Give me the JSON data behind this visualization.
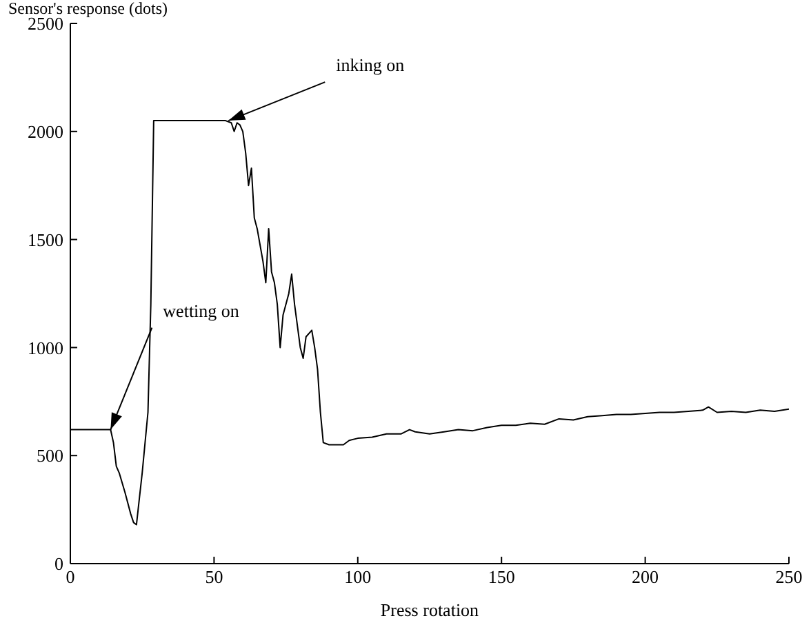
{
  "chart_data": {
    "type": "line",
    "ylabel": "Sensor's response (dots)",
    "xlabel": "Press rotation",
    "x": [
      0,
      14,
      15,
      16,
      17,
      19,
      21,
      22,
      23,
      24,
      25,
      26,
      27,
      28,
      29,
      54,
      56,
      57,
      58,
      59,
      60,
      61,
      62,
      63,
      64,
      65,
      67,
      68,
      69,
      70,
      71,
      72,
      73,
      74,
      76,
      77,
      78,
      80,
      81,
      82,
      84,
      85,
      86,
      87,
      88,
      90,
      95,
      97,
      100,
      105,
      110,
      115,
      118,
      120,
      125,
      130,
      135,
      140,
      145,
      150,
      155,
      160,
      165,
      170,
      175,
      180,
      185,
      190,
      195,
      200,
      205,
      210,
      215,
      220,
      222,
      225,
      230,
      235,
      240,
      245,
      250
    ],
    "series": [
      {
        "color": "#000000",
        "values": [
          620,
          620,
          560,
          450,
          420,
          330,
          230,
          190,
          180,
          300,
          420,
          560,
          700,
          1200,
          2050,
          2050,
          2040,
          2000,
          2040,
          2030,
          2000,
          1900,
          1750,
          1830,
          1600,
          1550,
          1400,
          1300,
          1550,
          1350,
          1300,
          1200,
          1000,
          1150,
          1250,
          1340,
          1200,
          1000,
          950,
          1050,
          1080,
          1000,
          900,
          700,
          560,
          550,
          550,
          570,
          580,
          585,
          600,
          600,
          620,
          610,
          600,
          610,
          620,
          615,
          630,
          640,
          640,
          650,
          645,
          670,
          665,
          680,
          685,
          690,
          690,
          695,
          700,
          700,
          705,
          710,
          725,
          700,
          705,
          700,
          710,
          705,
          715
        ]
      }
    ],
    "xlim": [
      0,
      250
    ],
    "xticks": [
      0,
      50,
      100,
      150,
      200,
      250
    ],
    "ylim": [
      0,
      2500
    ],
    "yticks": [
      0,
      500,
      1000,
      1500,
      2000,
      2500
    ],
    "grid": false,
    "legend": false,
    "marker": "none",
    "line_style": "solid",
    "annotations": [
      {
        "text": "inking on",
        "x": 55,
        "y": 2050
      },
      {
        "text": "wetting on",
        "x": 14,
        "y": 620
      }
    ]
  }
}
